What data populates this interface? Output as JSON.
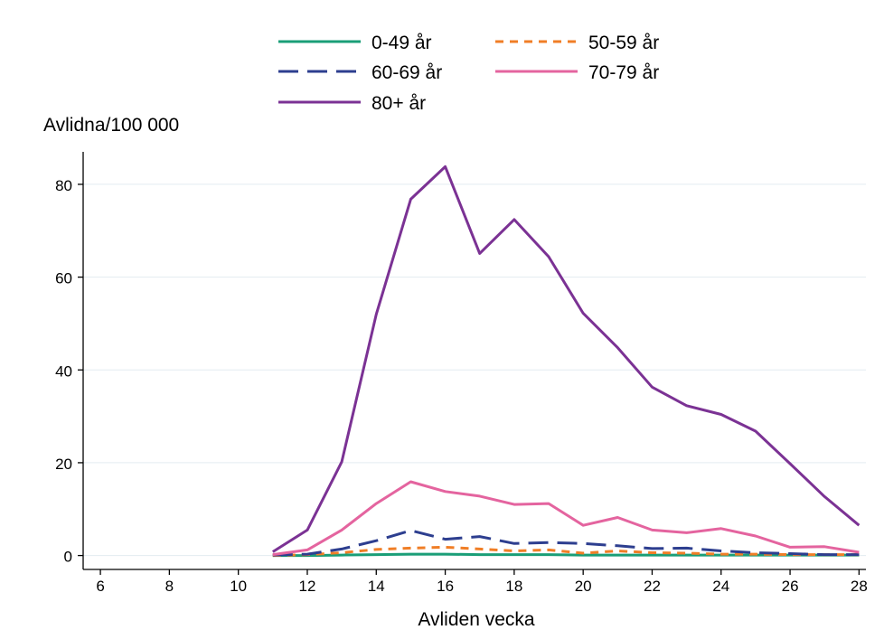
{
  "chart_data": {
    "type": "line",
    "xlabel": "Avliden vecka",
    "ylabel": "Avlidna/100 000",
    "xlim": [
      5.5,
      28.2
    ],
    "ylim": [
      -3,
      87
    ],
    "xticks": [
      6,
      8,
      10,
      12,
      14,
      16,
      18,
      20,
      22,
      24,
      26,
      28
    ],
    "yticks": [
      0,
      20,
      40,
      60,
      80
    ],
    "grid": "horizontal",
    "legend_position": "top",
    "x": [
      11,
      12,
      13,
      14,
      15,
      16,
      17,
      18,
      19,
      20,
      21,
      22,
      23,
      24,
      25,
      26,
      27,
      28
    ],
    "series": [
      {
        "name": "0-49 år",
        "color": "#1a9e77",
        "dash": "solid",
        "values": [
          0,
          0,
          0.1,
          0.2,
          0.3,
          0.3,
          0.2,
          0.2,
          0.2,
          0.1,
          0.1,
          0.1,
          0.1,
          0.1,
          0.1,
          0.1,
          0.1,
          0.1
        ]
      },
      {
        "name": "50-59 år",
        "color": "#f07e26",
        "dash": "dashed",
        "values": [
          0,
          0.2,
          0.6,
          1.3,
          1.6,
          1.8,
          1.4,
          1.0,
          1.2,
          0.5,
          1.0,
          0.6,
          0.5,
          0.3,
          0.3,
          0.2,
          0.2,
          0.2
        ]
      },
      {
        "name": "60-69 år",
        "color": "#2d3e8f",
        "dash": "longdash",
        "values": [
          0.1,
          0.3,
          1.4,
          3.2,
          5.4,
          3.5,
          4.1,
          2.6,
          2.8,
          2.6,
          2.1,
          1.5,
          1.6,
          1.0,
          0.6,
          0.4,
          0.2,
          0.2
        ]
      },
      {
        "name": "70-79 år",
        "color": "#e4649f",
        "dash": "solid",
        "values": [
          0.2,
          1.2,
          5.5,
          11.2,
          15.9,
          13.8,
          12.8,
          11.0,
          11.2,
          6.5,
          8.2,
          5.5,
          4.9,
          5.8,
          4.2,
          1.8,
          1.9,
          0.7
        ]
      },
      {
        "name": "80+ år",
        "color": "#7b3294",
        "dash": "solid",
        "values": [
          0.8,
          5.5,
          20.2,
          52.0,
          76.8,
          83.8,
          65.1,
          72.4,
          64.4,
          52.2,
          44.8,
          36.3,
          32.3,
          30.4,
          26.8,
          19.8,
          12.7,
          6.5
        ]
      }
    ]
  }
}
